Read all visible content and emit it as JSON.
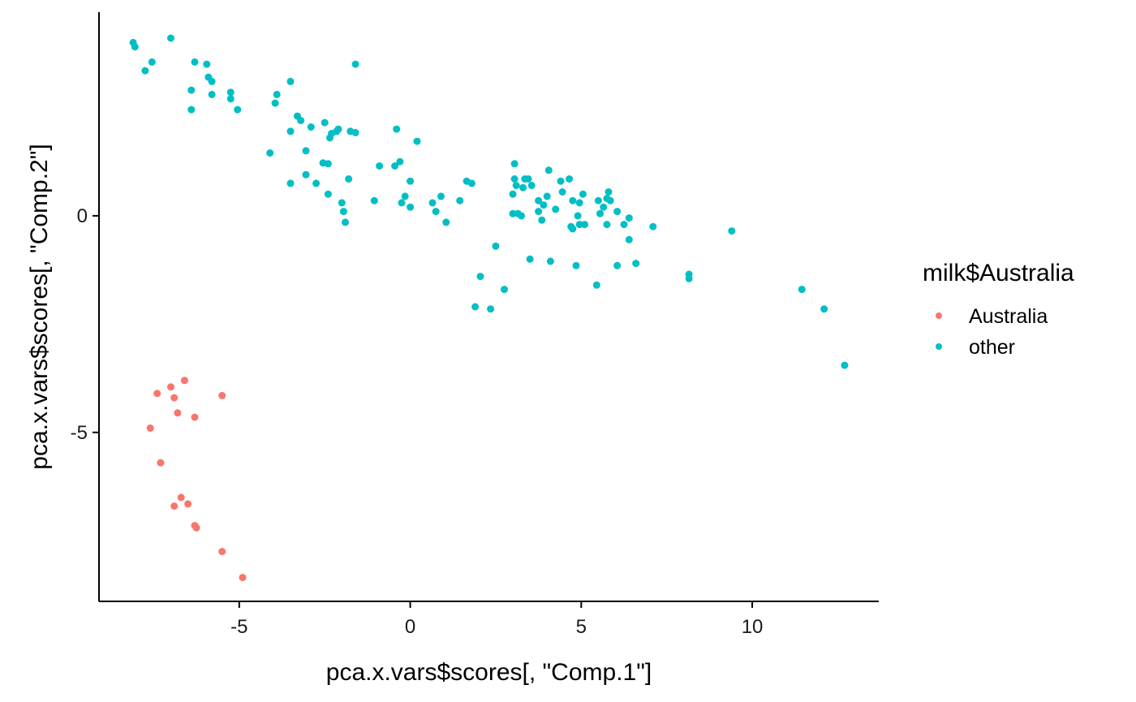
{
  "chart_data": {
    "type": "scatter",
    "xlabel": "pca.x.vars$scores[, \"Comp.1\"]",
    "ylabel": "pca.x.vars$scores[, \"Comp.2\"]",
    "xlim": [
      -9.1,
      13.7
    ],
    "ylim": [
      -8.9,
      4.7
    ],
    "x_ticks": [
      -5,
      0,
      5,
      10
    ],
    "y_ticks": [
      -5,
      0
    ],
    "grid": false,
    "legend": {
      "title": "milk$Australia",
      "position": "right"
    },
    "series": [
      {
        "name": "Australia",
        "color": "#F8766D",
        "points": [
          [
            -7.4,
            -4.1
          ],
          [
            -7.0,
            -3.95
          ],
          [
            -6.6,
            -3.8
          ],
          [
            -6.9,
            -4.2
          ],
          [
            -5.5,
            -4.15
          ],
          [
            -7.6,
            -4.9
          ],
          [
            -6.8,
            -4.55
          ],
          [
            -6.3,
            -4.65
          ],
          [
            -7.3,
            -5.7
          ],
          [
            -6.7,
            -6.5
          ],
          [
            -6.9,
            -6.7
          ],
          [
            -6.5,
            -6.65
          ],
          [
            -6.3,
            -7.15
          ],
          [
            -6.25,
            -7.2
          ],
          [
            -5.5,
            -7.75
          ],
          [
            -4.9,
            -8.35
          ]
        ]
      },
      {
        "name": "other",
        "color": "#00BFC4",
        "points": [
          [
            -8.1,
            4.0
          ],
          [
            -8.05,
            3.9
          ],
          [
            -7.0,
            4.1
          ],
          [
            -7.55,
            3.55
          ],
          [
            -7.75,
            3.35
          ],
          [
            -6.3,
            3.55
          ],
          [
            -5.95,
            3.5
          ],
          [
            -1.6,
            3.5
          ],
          [
            -5.9,
            3.2
          ],
          [
            -5.8,
            3.1
          ],
          [
            -6.4,
            2.9
          ],
          [
            -5.25,
            2.85
          ],
          [
            -5.8,
            2.8
          ],
          [
            -3.5,
            3.1
          ],
          [
            -3.9,
            2.8
          ],
          [
            -5.25,
            2.7
          ],
          [
            -3.95,
            2.6
          ],
          [
            -6.4,
            2.45
          ],
          [
            -5.05,
            2.45
          ],
          [
            -3.3,
            2.3
          ],
          [
            -3.2,
            2.2
          ],
          [
            -2.5,
            2.15
          ],
          [
            -2.9,
            2.05
          ],
          [
            -3.5,
            1.95
          ],
          [
            -2.1,
            2.0
          ],
          [
            -2.15,
            1.95
          ],
          [
            -1.75,
            1.95
          ],
          [
            -1.6,
            1.92
          ],
          [
            -2.3,
            1.9
          ],
          [
            -2.35,
            1.8
          ],
          [
            -0.4,
            2.0
          ],
          [
            0.2,
            1.72
          ],
          [
            -4.1,
            1.45
          ],
          [
            -3.05,
            1.5
          ],
          [
            -2.55,
            1.22
          ],
          [
            -2.4,
            1.2
          ],
          [
            -0.9,
            1.15
          ],
          [
            -0.45,
            1.15
          ],
          [
            -0.3,
            1.25
          ],
          [
            -3.05,
            0.95
          ],
          [
            -2.75,
            0.75
          ],
          [
            -1.8,
            0.85
          ],
          [
            -3.5,
            0.75
          ],
          [
            -2.4,
            0.5
          ],
          [
            -0.15,
            0.45
          ],
          [
            0.0,
            0.8
          ],
          [
            -1.05,
            0.35
          ],
          [
            -0.25,
            0.3
          ],
          [
            -2.0,
            0.3
          ],
          [
            -1.95,
            0.1
          ],
          [
            0.0,
            0.2
          ],
          [
            -1.9,
            -0.15
          ],
          [
            0.65,
            0.3
          ],
          [
            0.9,
            0.45
          ],
          [
            0.75,
            0.1
          ],
          [
            1.05,
            -0.15
          ],
          [
            1.45,
            0.35
          ],
          [
            1.65,
            0.8
          ],
          [
            1.8,
            0.75
          ],
          [
            3.05,
            1.2
          ],
          [
            3.05,
            0.85
          ],
          [
            3.1,
            0.7
          ],
          [
            3.35,
            0.85
          ],
          [
            3.45,
            0.85
          ],
          [
            3.55,
            0.7
          ],
          [
            4.05,
            1.05
          ],
          [
            4.4,
            0.8
          ],
          [
            4.65,
            0.85
          ],
          [
            3.0,
            0.5
          ],
          [
            3.3,
            0.65
          ],
          [
            3.75,
            0.35
          ],
          [
            3.9,
            0.25
          ],
          [
            4.0,
            0.45
          ],
          [
            4.45,
            0.55
          ],
          [
            4.75,
            0.35
          ],
          [
            5.05,
            0.5
          ],
          [
            4.95,
            0.3
          ],
          [
            5.5,
            0.35
          ],
          [
            5.8,
            0.55
          ],
          [
            5.75,
            0.4
          ],
          [
            5.65,
            0.2
          ],
          [
            5.85,
            0.35
          ],
          [
            6.05,
            0.1
          ],
          [
            6.4,
            -0.05
          ],
          [
            3.0,
            0.05
          ],
          [
            3.15,
            0.05
          ],
          [
            3.25,
            0.0
          ],
          [
            3.75,
            0.1
          ],
          [
            3.85,
            -0.1
          ],
          [
            4.25,
            0.15
          ],
          [
            4.7,
            -0.25
          ],
          [
            4.75,
            -0.3
          ],
          [
            4.9,
            0.0
          ],
          [
            4.95,
            -0.2
          ],
          [
            5.1,
            -0.2
          ],
          [
            5.55,
            0.05
          ],
          [
            5.75,
            -0.2
          ],
          [
            6.25,
            -0.2
          ],
          [
            7.1,
            -0.25
          ],
          [
            6.4,
            -0.55
          ],
          [
            2.5,
            -0.7
          ],
          [
            3.5,
            -1.0
          ],
          [
            4.1,
            -1.05
          ],
          [
            4.85,
            -1.15
          ],
          [
            6.05,
            -1.15
          ],
          [
            6.6,
            -1.1
          ],
          [
            2.05,
            -1.4
          ],
          [
            2.75,
            -1.7
          ],
          [
            5.45,
            -1.6
          ],
          [
            8.15,
            -1.35
          ],
          [
            8.15,
            -1.45
          ],
          [
            9.4,
            -0.35
          ],
          [
            11.45,
            -1.7
          ],
          [
            12.1,
            -2.15
          ],
          [
            1.9,
            -2.1
          ],
          [
            2.35,
            -2.15
          ],
          [
            12.7,
            -3.45
          ]
        ]
      }
    ]
  }
}
